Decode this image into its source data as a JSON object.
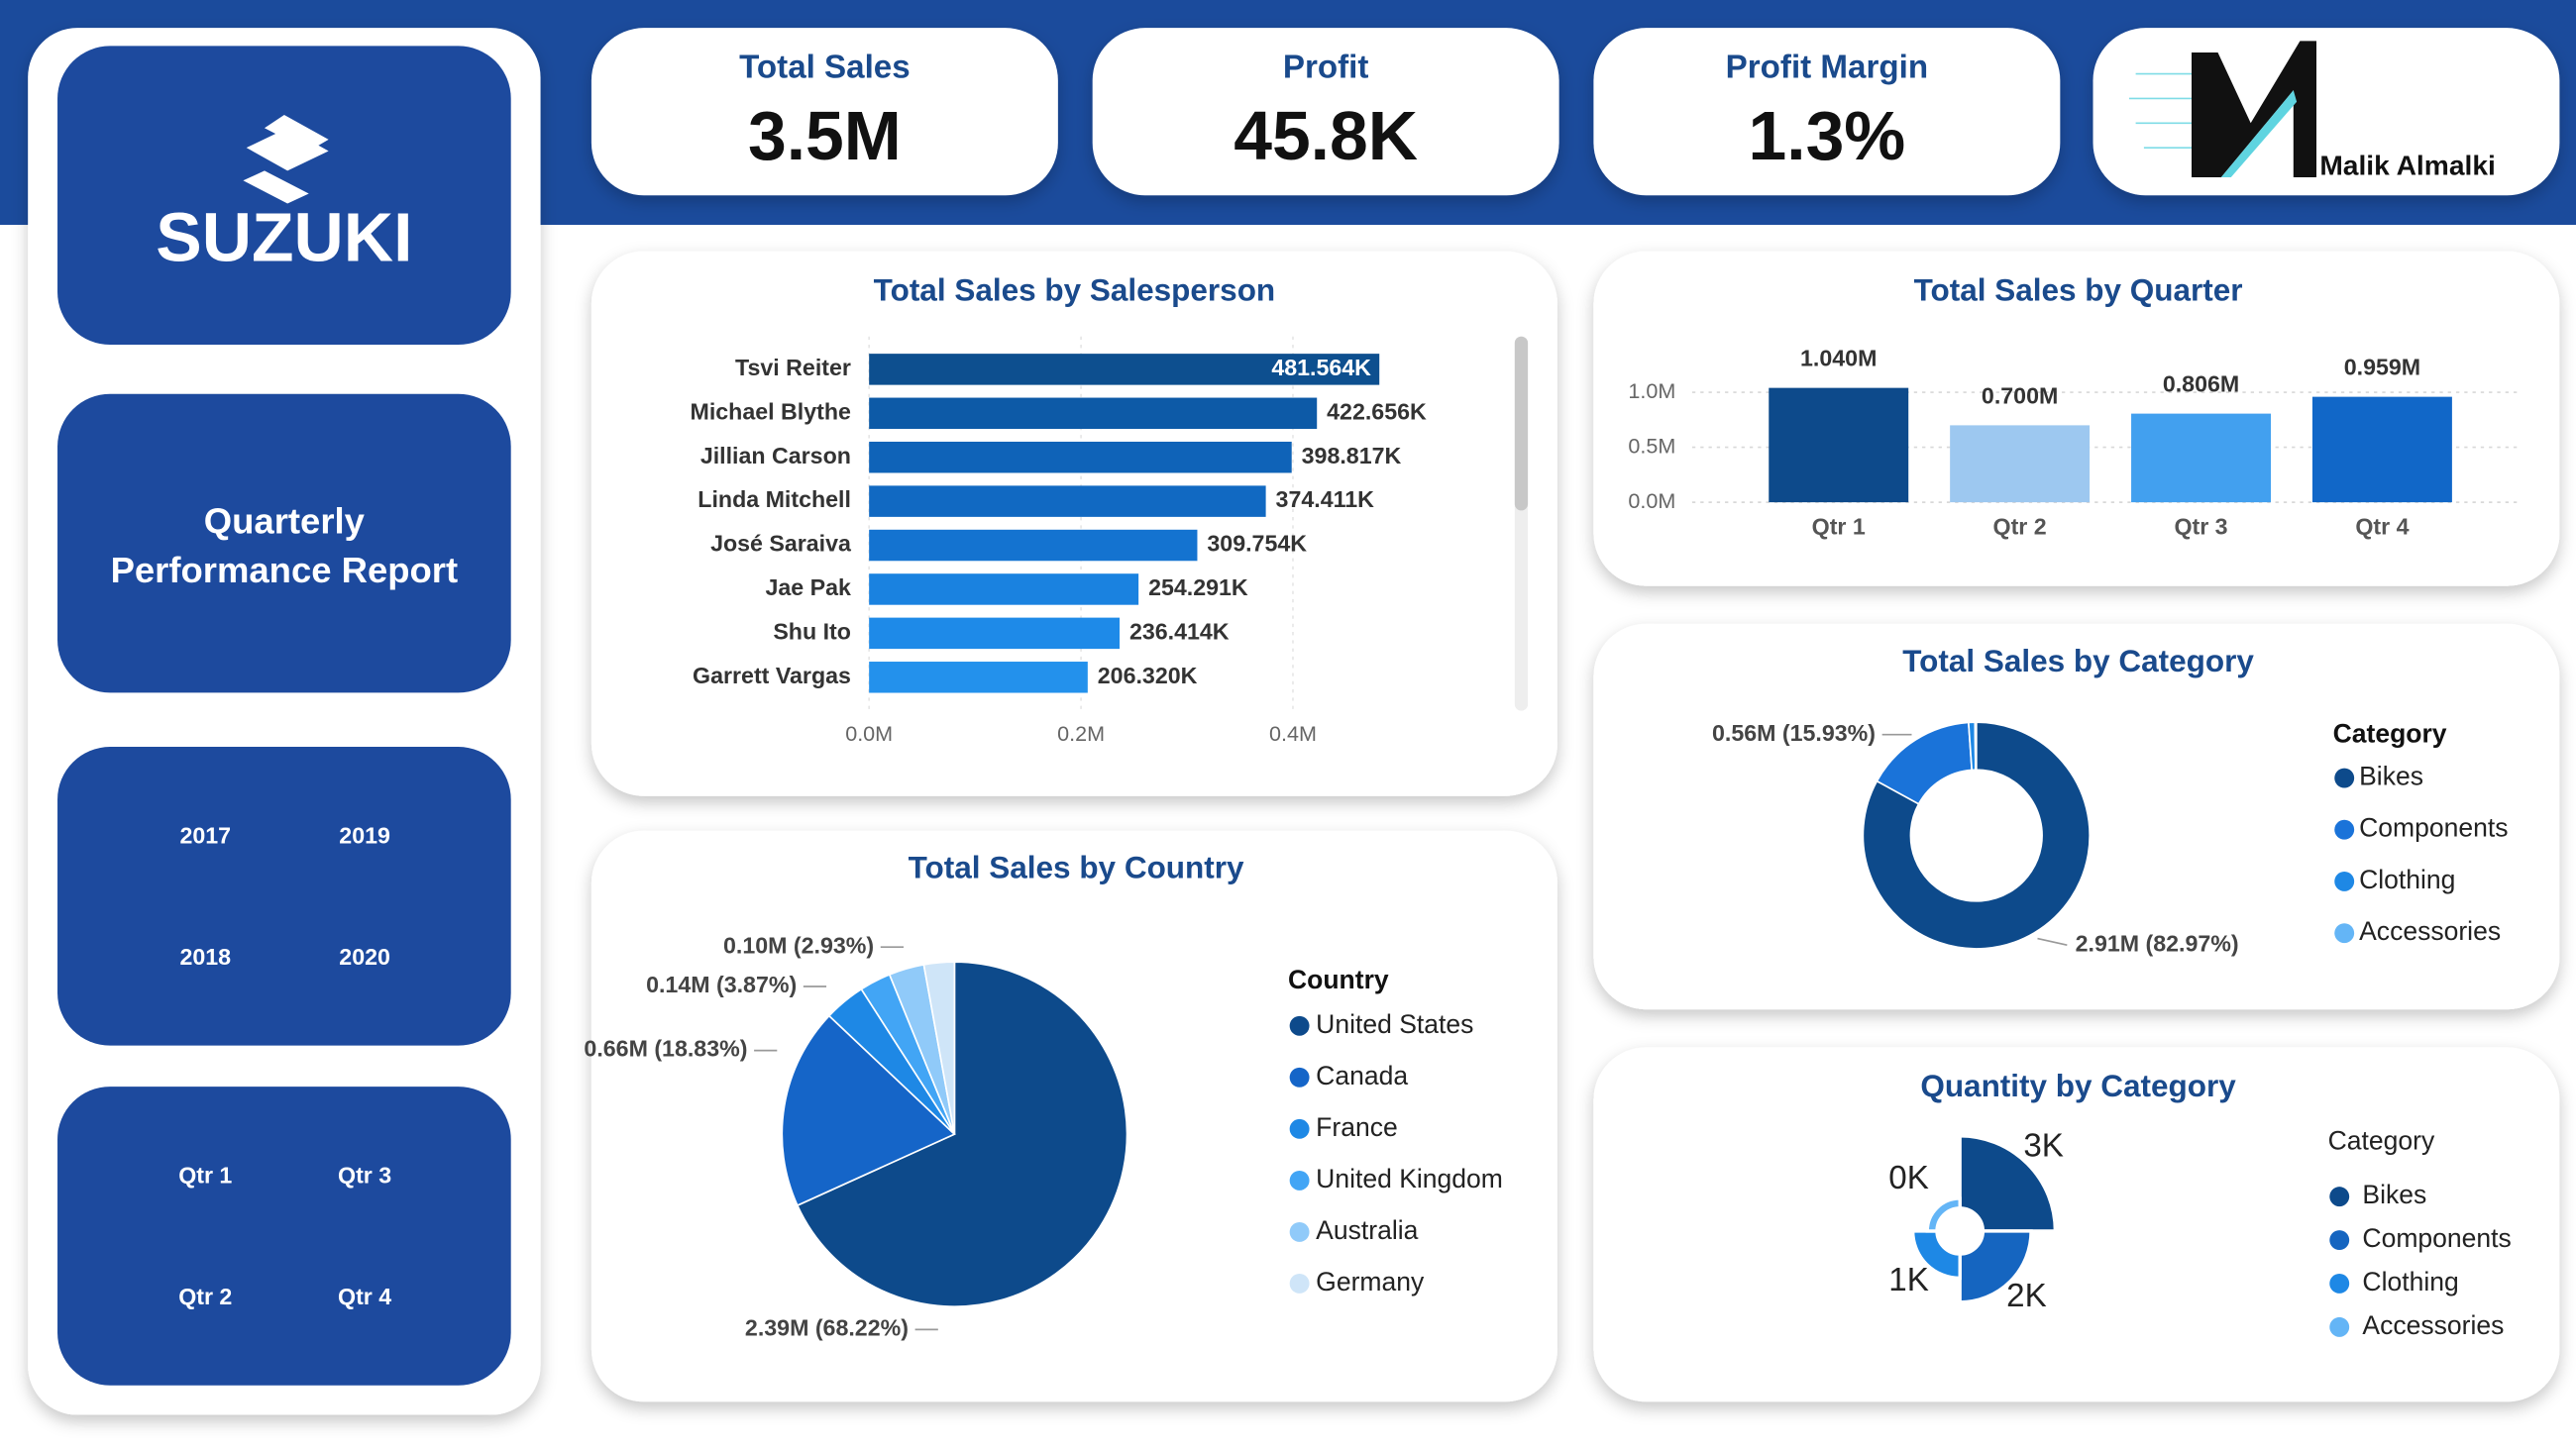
{
  "brand": {
    "logo_text": "SUZUKI",
    "report_title": [
      "Quarterly",
      "Performance Report"
    ],
    "author": "Malik Almalki"
  },
  "slicers": {
    "years": [
      "2017",
      "2019",
      "2018",
      "2020"
    ],
    "quarters": [
      "Qtr 1",
      "Qtr 3",
      "Qtr 2",
      "Qtr 4"
    ]
  },
  "kpis": [
    {
      "label": "Total Sales",
      "value": "3.5M"
    },
    {
      "label": "Profit",
      "value": "45.8K"
    },
    {
      "label": "Profit Margin",
      "value": "1.3%"
    }
  ],
  "chart_data": [
    {
      "type": "hbar",
      "title": "Total Sales by Salesperson",
      "categories": [
        "Tsvi Reiter",
        "Michael Blythe",
        "Jillian Carson",
        "Linda Mitchell",
        "José Saraiva",
        "Jae Pak",
        "Shu Ito",
        "Garrett Vargas"
      ],
      "values": [
        0.481564,
        0.422656,
        0.398817,
        0.374411,
        0.309754,
        0.254291,
        0.236414,
        0.20632
      ],
      "value_labels": [
        "481.564K",
        "422.656K",
        "398.817K",
        "374.411K",
        "309.754K",
        "254.291K",
        "236.414K",
        "206.320K"
      ],
      "colors": [
        "#0d4f8f",
        "#0d5aa7",
        "#0f63b8",
        "#1169c2",
        "#1473d0",
        "#1a82e0",
        "#1e8ae8",
        "#2391ec"
      ],
      "xlim": [
        0,
        0.5
      ],
      "xticks": [
        {
          "value": 0,
          "label": "0.0M"
        },
        {
          "value": 0.2,
          "label": "0.2M"
        },
        {
          "value": 0.4,
          "label": "0.4M"
        }
      ],
      "grid": true
    },
    {
      "type": "bar",
      "title": "Total Sales by Quarter",
      "categories": [
        "Qtr 1",
        "Qtr 2",
        "Qtr 3",
        "Qtr 4"
      ],
      "values": [
        1.04,
        0.7,
        0.806,
        0.959
      ],
      "value_labels": [
        "1.040M",
        "0.700M",
        "0.806M",
        "0.959M"
      ],
      "colors": [
        "#0d4a8b",
        "#9dc8f0",
        "#42a0ef",
        "#1167c8"
      ],
      "ylim": [
        0,
        1.1
      ],
      "yticks": [
        {
          "value": 0,
          "label": "0.0M"
        },
        {
          "value": 0.5,
          "label": "0.5M"
        },
        {
          "value": 1,
          "label": "1.0M"
        }
      ],
      "grid": true
    },
    {
      "type": "donut",
      "title": "Total Sales by Category",
      "legend_title": "Category",
      "categories": [
        "Bikes",
        "Components",
        "Clothing",
        "Accessories"
      ],
      "values": [
        82.97,
        15.93,
        0.9,
        0.2
      ],
      "value_labels": [
        "2.91M (82.97%)",
        "0.56M (15.93%)",
        null,
        null
      ],
      "colors": [
        "#0d4a8b",
        "#1a73d9",
        "#1e88e5",
        "#64b5f6"
      ]
    },
    {
      "type": "pie",
      "title": "Total Sales by Country",
      "legend_title": "Country",
      "categories": [
        "United States",
        "Canada",
        "France",
        "United Kingdom",
        "Australia",
        "Germany"
      ],
      "values": [
        68.22,
        18.83,
        3.87,
        2.93,
        3.3,
        2.85
      ],
      "value_labels": [
        "2.39M (68.22%)",
        "0.66M (18.83%)",
        "0.14M (3.87%)",
        "0.10M (2.93%)",
        null,
        null
      ],
      "colors": [
        "#0d4a8b",
        "#1565c8",
        "#1e88e5",
        "#42a5f5",
        "#90caf9",
        "#cfe5f8"
      ]
    },
    {
      "type": "polar",
      "title": "Quantity by Category",
      "legend_title": "Category",
      "categories": [
        "Bikes",
        "Components",
        "Clothing",
        "Accessories"
      ],
      "values": [
        3,
        2,
        1,
        0.4
      ],
      "value_labels": [
        "3K",
        "2K",
        "1K",
        "0K"
      ],
      "colors": [
        "#0d4a8b",
        "#1565c0",
        "#1e88e5",
        "#64b5f6"
      ]
    }
  ]
}
